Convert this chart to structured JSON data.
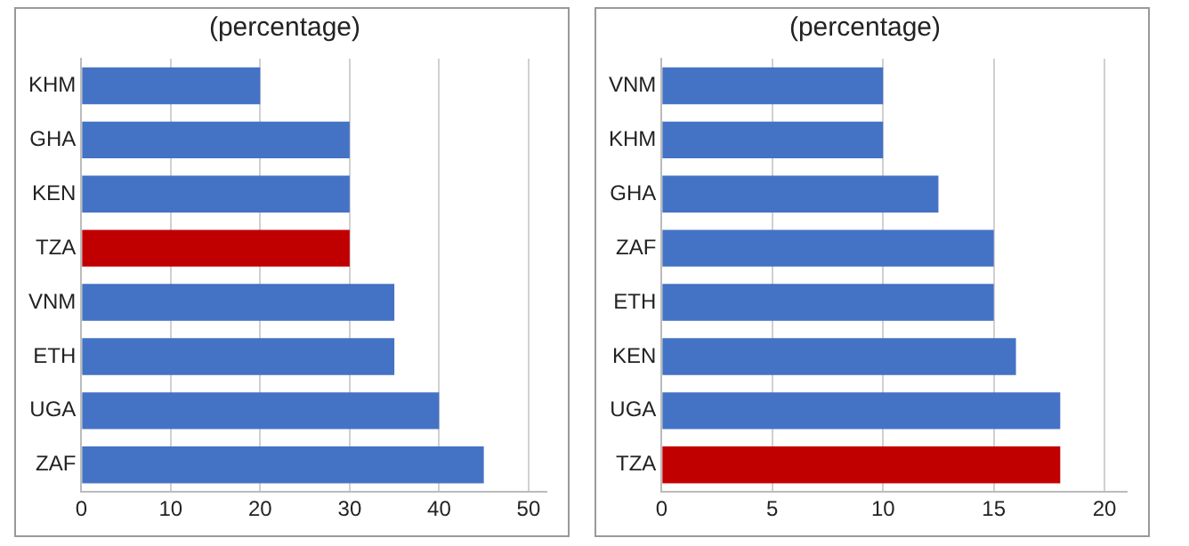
{
  "chart_data": [
    {
      "type": "bar",
      "title": "(percentage)",
      "orientation": "horizontal",
      "categories": [
        "KHM",
        "GHA",
        "KEN",
        "TZA",
        "VNM",
        "ETH",
        "UGA",
        "ZAF"
      ],
      "values": [
        20,
        30,
        30,
        30,
        35,
        35,
        40,
        45
      ],
      "colors": [
        "#4472c4",
        "#4472c4",
        "#4472c4",
        "#c00000",
        "#4472c4",
        "#4472c4",
        "#4472c4",
        "#4472c4"
      ],
      "xlim": [
        0,
        52
      ],
      "xticks": [
        0,
        10,
        20,
        30,
        40,
        50
      ],
      "grid": "x",
      "legend": false
    },
    {
      "type": "bar",
      "title": "(percentage)",
      "orientation": "horizontal",
      "categories": [
        "VNM",
        "KHM",
        "GHA",
        "ZAF",
        "ETH",
        "KEN",
        "UGA",
        "TZA"
      ],
      "values": [
        10,
        10,
        12.5,
        15,
        15,
        16,
        18,
        18
      ],
      "colors": [
        "#4472c4",
        "#4472c4",
        "#4472c4",
        "#4472c4",
        "#4472c4",
        "#4472c4",
        "#4472c4",
        "#c00000"
      ],
      "xlim": [
        0,
        21
      ],
      "xticks": [
        0,
        5,
        10,
        15,
        20
      ],
      "grid": "x",
      "legend": false
    }
  ]
}
